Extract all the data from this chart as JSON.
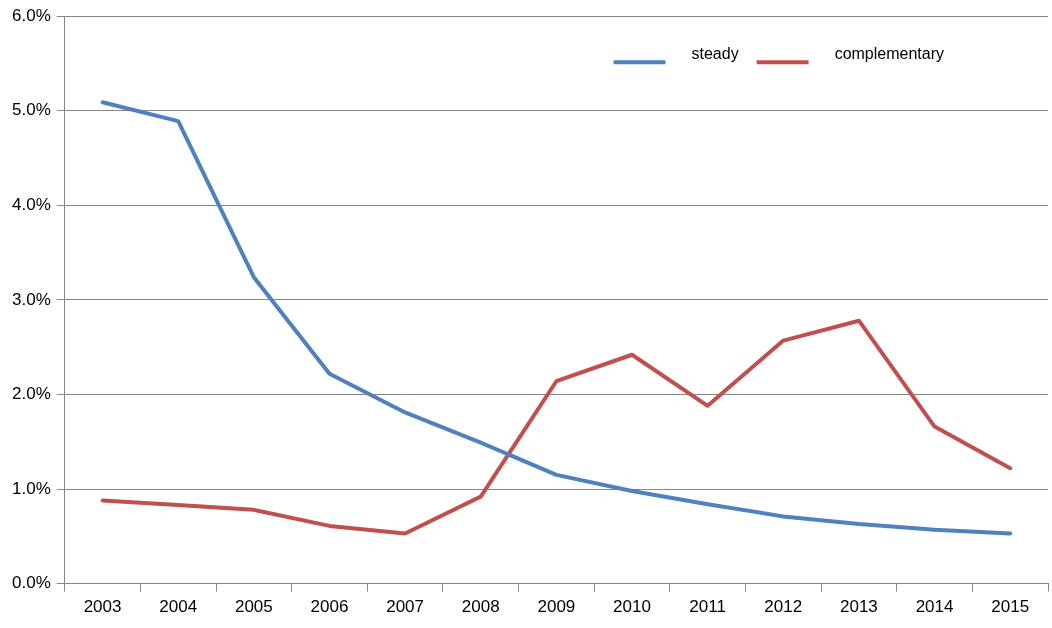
{
  "chart_data": {
    "type": "line",
    "categories": [
      "2003",
      "2004",
      "2005",
      "2006",
      "2007",
      "2008",
      "2009",
      "2010",
      "2011",
      "2012",
      "2013",
      "2014",
      "2015"
    ],
    "series": [
      {
        "name": "steady",
        "color": "#4f81bd",
        "values": [
          5.09,
          4.89,
          3.24,
          2.22,
          1.81,
          1.49,
          1.15,
          0.98,
          0.84,
          0.71,
          0.63,
          0.57,
          0.53
        ]
      },
      {
        "name": "complementary",
        "color": "#c0504d",
        "values": [
          0.88,
          0.83,
          0.78,
          0.61,
          0.53,
          0.92,
          2.14,
          2.42,
          1.88,
          2.57,
          2.78,
          1.66,
          1.22
        ]
      }
    ],
    "ylim": [
      0,
      6
    ],
    "yticks": [
      {
        "value": 0,
        "label": "0.0%"
      },
      {
        "value": 1,
        "label": "1.0%"
      },
      {
        "value": 2,
        "label": "2.0%"
      },
      {
        "value": 3,
        "label": "3.0%"
      },
      {
        "value": 4,
        "label": "4.0%"
      },
      {
        "value": 5,
        "label": "5.0%"
      },
      {
        "value": 6,
        "label": "6.0%"
      }
    ],
    "grid": "y",
    "legend": "top right",
    "marker": "none",
    "line_style": "solid"
  }
}
